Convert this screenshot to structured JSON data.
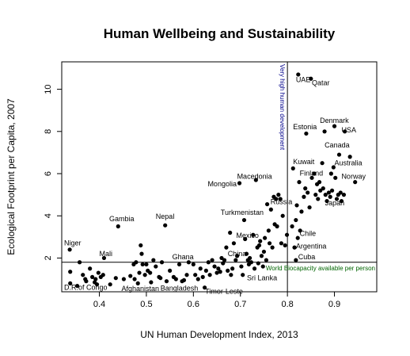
{
  "chart_data": {
    "type": "scatter",
    "title": "Human Wellbeing and Sustainability",
    "xlabel": "UN Human Development Index, 2013",
    "ylabel": "Ecological Footprint per Capita, 2007",
    "xlim": [
      0.32,
      0.99
    ],
    "ylim": [
      0.4,
      11.3
    ],
    "xticks": [
      0.4,
      0.5,
      0.6,
      0.7,
      0.8,
      0.9
    ],
    "xtick_labels": [
      "0.4",
      "0.5",
      "0.6",
      "0.7",
      "0.8",
      "0.9"
    ],
    "yticks": [
      2,
      4,
      6,
      8,
      10
    ],
    "ytick_labels": [
      "2",
      "4",
      "6",
      "8",
      "10"
    ],
    "grid": false,
    "point_color": "#000000",
    "vline": {
      "x": 0.8,
      "label": "Very high human development",
      "color": "#00008B"
    },
    "hline": {
      "y": 1.8,
      "label": "World Biocapacity available per person",
      "color": "#006400"
    },
    "labels": [
      {
        "text": "UAE",
        "x": 0.818,
        "y": 10.35,
        "anchor": "start"
      },
      {
        "text": "Qatar",
        "x": 0.852,
        "y": 10.2,
        "anchor": "start"
      },
      {
        "text": "Denmark",
        "x": 0.869,
        "y": 8.4,
        "anchor": "start"
      },
      {
        "text": "USA",
        "x": 0.915,
        "y": 7.95,
        "anchor": "start"
      },
      {
        "text": "Estonia",
        "x": 0.812,
        "y": 8.1,
        "anchor": "start"
      },
      {
        "text": "Canada",
        "x": 0.879,
        "y": 7.25,
        "anchor": "start"
      },
      {
        "text": "Kuwait",
        "x": 0.812,
        "y": 6.45,
        "anchor": "start"
      },
      {
        "text": "Australia",
        "x": 0.9,
        "y": 6.4,
        "anchor": "start"
      },
      {
        "text": "Finland",
        "x": 0.826,
        "y": 5.9,
        "anchor": "start"
      },
      {
        "text": "Norway",
        "x": 0.915,
        "y": 5.75,
        "anchor": "start"
      },
      {
        "text": "Macedonia",
        "x": 0.693,
        "y": 5.75,
        "anchor": "start"
      },
      {
        "text": "Mongolia",
        "x": 0.692,
        "y": 5.4,
        "anchor": "end"
      },
      {
        "text": "Russia",
        "x": 0.764,
        "y": 4.55,
        "anchor": "start"
      },
      {
        "text": "Japan",
        "x": 0.88,
        "y": 4.5,
        "anchor": "start"
      },
      {
        "text": "Turkmenistan",
        "x": 0.658,
        "y": 4.05,
        "anchor": "start"
      },
      {
        "text": "Gambia",
        "x": 0.421,
        "y": 3.75,
        "anchor": "start"
      },
      {
        "text": "Nepal",
        "x": 0.52,
        "y": 3.85,
        "anchor": "start"
      },
      {
        "text": "Chile",
        "x": 0.826,
        "y": 3.05,
        "anchor": "start"
      },
      {
        "text": "Mexico",
        "x": 0.691,
        "y": 2.95,
        "anchor": "start"
      },
      {
        "text": "Argentina",
        "x": 0.818,
        "y": 2.45,
        "anchor": "start"
      },
      {
        "text": "Niger",
        "x": 0.325,
        "y": 2.6,
        "anchor": "start"
      },
      {
        "text": "Mali",
        "x": 0.4,
        "y": 2.1,
        "anchor": "start"
      },
      {
        "text": "Ghana",
        "x": 0.555,
        "y": 1.95,
        "anchor": "start"
      },
      {
        "text": "China",
        "x": 0.673,
        "y": 2.1,
        "anchor": "start"
      },
      {
        "text": "Cuba",
        "x": 0.823,
        "y": 1.95,
        "anchor": "start",
        "color": "#FF0000"
      },
      {
        "text": "Sri Lanka",
        "x": 0.714,
        "y": 0.95,
        "anchor": "start"
      },
      {
        "text": "D.R.of Congo",
        "x": 0.325,
        "y": 0.5,
        "anchor": "start"
      },
      {
        "text": "Afghanistan",
        "x": 0.447,
        "y": 0.43,
        "anchor": "start"
      },
      {
        "text": "Bangladesh",
        "x": 0.53,
        "y": 0.45,
        "anchor": "start"
      },
      {
        "text": "Timor-Leste",
        "x": 0.625,
        "y": 0.3,
        "anchor": "start"
      }
    ],
    "points": [
      [
        0.337,
        2.4
      ],
      [
        0.338,
        1.35
      ],
      [
        0.338,
        0.8
      ],
      [
        0.353,
        0.68
      ],
      [
        0.358,
        1.8
      ],
      [
        0.365,
        1.2
      ],
      [
        0.37,
        1.0
      ],
      [
        0.372,
        0.9
      ],
      [
        0.38,
        1.5
      ],
      [
        0.385,
        1.1
      ],
      [
        0.39,
        0.85
      ],
      [
        0.392,
        1.0
      ],
      [
        0.395,
        0.75
      ],
      [
        0.398,
        1.3
      ],
      [
        0.403,
        1.1
      ],
      [
        0.408,
        1.2
      ],
      [
        0.41,
        2.0
      ],
      [
        0.423,
        0.75
      ],
      [
        0.435,
        1.05
      ],
      [
        0.44,
        3.5
      ],
      [
        0.452,
        1.0
      ],
      [
        0.466,
        1.15
      ],
      [
        0.473,
        1.7
      ],
      [
        0.475,
        1.0
      ],
      [
        0.478,
        1.8
      ],
      [
        0.482,
        0.8
      ],
      [
        0.485,
        1.3
      ],
      [
        0.488,
        2.6
      ],
      [
        0.49,
        2.2
      ],
      [
        0.492,
        1.7
      ],
      [
        0.497,
        1.2
      ],
      [
        0.5,
        1.7
      ],
      [
        0.503,
        1.4
      ],
      [
        0.508,
        1.3
      ],
      [
        0.51,
        0.85
      ],
      [
        0.515,
        1.9
      ],
      [
        0.52,
        1.6
      ],
      [
        0.527,
        1.1
      ],
      [
        0.53,
        1.05
      ],
      [
        0.533,
        1.8
      ],
      [
        0.54,
        3.55
      ],
      [
        0.543,
        0.9
      ],
      [
        0.55,
        1.4
      ],
      [
        0.558,
        1.1
      ],
      [
        0.563,
        1.0
      ],
      [
        0.57,
        1.7
      ],
      [
        0.576,
        0.9
      ],
      [
        0.58,
        0.95
      ],
      [
        0.586,
        1.2
      ],
      [
        0.59,
        1.8
      ],
      [
        0.6,
        1.7
      ],
      [
        0.604,
        1.2
      ],
      [
        0.61,
        1.0
      ],
      [
        0.615,
        1.5
      ],
      [
        0.62,
        1.1
      ],
      [
        0.624,
        0.6
      ],
      [
        0.627,
        1.4
      ],
      [
        0.632,
        1.8
      ],
      [
        0.635,
        1.2
      ],
      [
        0.64,
        1.9
      ],
      [
        0.645,
        1.6
      ],
      [
        0.65,
        1.3
      ],
      [
        0.653,
        1.5
      ],
      [
        0.657,
        1.35
      ],
      [
        0.66,
        2.0
      ],
      [
        0.663,
        1.75
      ],
      [
        0.666,
        1.9
      ],
      [
        0.67,
        2.5
      ],
      [
        0.673,
        1.4
      ],
      [
        0.678,
        3.2
      ],
      [
        0.68,
        1.2
      ],
      [
        0.683,
        1.5
      ],
      [
        0.686,
        2.7
      ],
      [
        0.69,
        1.9
      ],
      [
        0.693,
        2.1
      ],
      [
        0.698,
        5.55
      ],
      [
        0.702,
        1.6
      ],
      [
        0.705,
        1.2
      ],
      [
        0.708,
        3.8
      ],
      [
        0.71,
        2.9
      ],
      [
        0.713,
        2.2
      ],
      [
        0.716,
        1.9
      ],
      [
        0.718,
        1.7
      ],
      [
        0.72,
        2.0
      ],
      [
        0.723,
        1.8
      ],
      [
        0.727,
        3.1
      ],
      [
        0.73,
        1.5
      ],
      [
        0.733,
        5.7
      ],
      [
        0.736,
        2.5
      ],
      [
        0.738,
        1.75
      ],
      [
        0.74,
        2.6
      ],
      [
        0.742,
        2.8
      ],
      [
        0.745,
        2.1
      ],
      [
        0.748,
        1.6
      ],
      [
        0.75,
        2.3
      ],
      [
        0.752,
        2.95
      ],
      [
        0.755,
        1.9
      ],
      [
        0.757,
        4.55
      ],
      [
        0.76,
        3.3
      ],
      [
        0.762,
        2.7
      ],
      [
        0.765,
        4.3
      ],
      [
        0.768,
        2.5
      ],
      [
        0.771,
        4.9
      ],
      [
        0.773,
        3.6
      ],
      [
        0.776,
        4.8
      ],
      [
        0.778,
        3.5
      ],
      [
        0.781,
        5.0
      ],
      [
        0.785,
        4.8
      ],
      [
        0.787,
        2.7
      ],
      [
        0.79,
        4.0
      ],
      [
        0.795,
        2.6
      ],
      [
        0.799,
        3.1
      ],
      [
        0.81,
        3.5
      ],
      [
        0.812,
        6.25
      ],
      [
        0.815,
        2.5
      ],
      [
        0.818,
        3.8
      ],
      [
        0.82,
        4.5
      ],
      [
        0.822,
        2.95
      ],
      [
        0.823,
        10.7
      ],
      [
        0.825,
        5.6
      ],
      [
        0.827,
        3.3
      ],
      [
        0.83,
        4.2
      ],
      [
        0.835,
        4.9
      ],
      [
        0.838,
        5.3
      ],
      [
        0.84,
        7.9
      ],
      [
        0.843,
        5.1
      ],
      [
        0.847,
        4.4
      ],
      [
        0.85,
        10.5
      ],
      [
        0.852,
        5.8
      ],
      [
        0.857,
        6.0
      ],
      [
        0.86,
        5.0
      ],
      [
        0.863,
        5.5
      ],
      [
        0.865,
        4.8
      ],
      [
        0.868,
        5.6
      ],
      [
        0.87,
        5.2
      ],
      [
        0.874,
        6.5
      ],
      [
        0.876,
        5.3
      ],
      [
        0.879,
        8.0
      ],
      [
        0.881,
        5.0
      ],
      [
        0.884,
        4.7
      ],
      [
        0.888,
        5.1
      ],
      [
        0.891,
        4.9
      ],
      [
        0.893,
        6.0
      ],
      [
        0.895,
        5.2
      ],
      [
        0.898,
        6.3
      ],
      [
        0.9,
        8.25
      ],
      [
        0.902,
        5.8
      ],
      [
        0.905,
        4.8
      ],
      [
        0.908,
        5.0
      ],
      [
        0.91,
        6.9
      ],
      [
        0.913,
        5.1
      ],
      [
        0.915,
        4.7
      ],
      [
        0.92,
        5.0
      ],
      [
        0.922,
        8.0
      ],
      [
        0.933,
        6.8
      ],
      [
        0.944,
        5.6
      ],
      [
        0.818,
        1.9
      ]
    ]
  }
}
